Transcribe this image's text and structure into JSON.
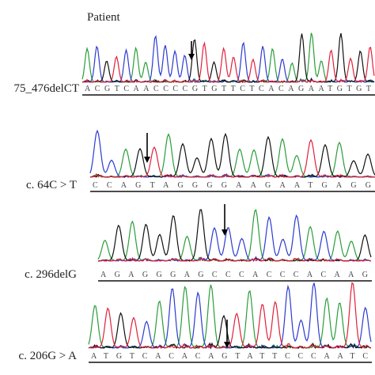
{
  "title": "Patient",
  "panels": [
    {
      "label": "75_476delCT",
      "sequence": "ACGTCAACCCCGTGTTCTCACAGAATGTGT"
    },
    {
      "label": "c. 64C > T",
      "sequence": "CCAGTAGGGGAAGAATGAGG"
    },
    {
      "label": "c. 296delG",
      "sequence": "AGAGGGAGCCCACCCACAAG"
    },
    {
      "label": "c. 206G > A",
      "sequence": "ATGTCACACAGTATTCCCAATC"
    }
  ]
}
